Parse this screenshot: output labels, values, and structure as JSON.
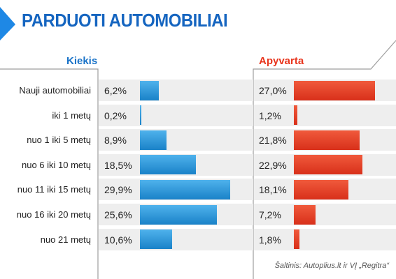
{
  "header": {
    "title": "PARDUOTI AUTOMOBILIAI"
  },
  "colors": {
    "title": "#1565c0",
    "title_arrow": "#1e88e5",
    "kiekis": "#1a73c8",
    "apyvarta": "#e8341c",
    "bar_blue": "#2a97e0",
    "bar_red": "#e8412a",
    "row_background": "#eeeeee",
    "grid_line": "#9e9e9e"
  },
  "footer": {
    "source": "Šaltinis: Autoplius.lt ir VĮ „Regitra“"
  },
  "chart_data": {
    "type": "bar",
    "orientation": "horizontal",
    "categories": [
      "Nauji automobiliai",
      "iki 1 metų",
      "nuo 1 iki 5 metų",
      "nuo 6 iki 10 metų",
      "nuo 11 iki 15 metų",
      "nuo 16 iki 20 metų",
      "nuo 21 metų"
    ],
    "series": [
      {
        "name": "Kiekis",
        "values": [
          6.2,
          0.2,
          8.9,
          18.5,
          29.9,
          25.6,
          10.6
        ],
        "labels": [
          "6,2%",
          "0,2%",
          "8,9%",
          "18,5%",
          "29,9%",
          "25,6%",
          "10,6%"
        ],
        "color": "#2a97e0"
      },
      {
        "name": "Apyvarta",
        "values": [
          27.0,
          1.2,
          21.8,
          22.9,
          18.1,
          7.2,
          1.8
        ],
        "labels": [
          "27,0%",
          "1,2%",
          "21,8%",
          "22,9%",
          "18,1%",
          "7,2%",
          "1,8%"
        ],
        "color": "#e8412a"
      }
    ],
    "unit": "%",
    "title": "PARDUOTI AUTOMOBILIAI",
    "grid": false,
    "legend": "none"
  }
}
